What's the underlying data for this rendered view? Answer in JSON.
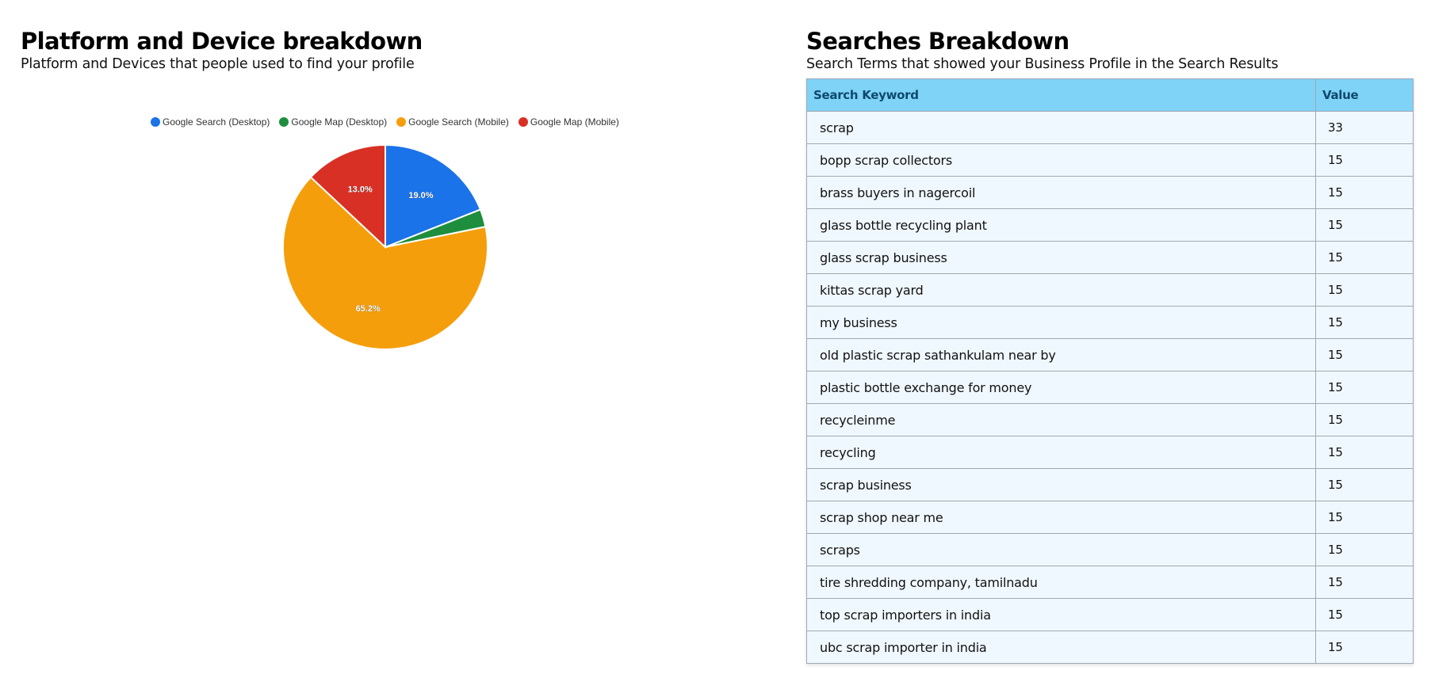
{
  "left_panel": {
    "title": "Platform and Device breakdown",
    "subtitle": "Platform and Devices that people used to find your profile"
  },
  "right_panel": {
    "title": "Searches Breakdown",
    "subtitle": "Search Terms that showed your Business Profile in the Search Results",
    "table": {
      "headers": [
        "Search Keyword",
        "Value"
      ],
      "rows": [
        {
          "keyword": "scrap",
          "value": "33"
        },
        {
          "keyword": "bopp scrap collectors",
          "value": "15"
        },
        {
          "keyword": "brass buyers in nagercoil",
          "value": "15"
        },
        {
          "keyword": "glass bottle recycling plant",
          "value": "15"
        },
        {
          "keyword": "glass scrap business",
          "value": "15"
        },
        {
          "keyword": "kittas scrap yard",
          "value": "15"
        },
        {
          "keyword": "my business",
          "value": "15"
        },
        {
          "keyword": "old plastic scrap sathankulam near by",
          "value": "15"
        },
        {
          "keyword": "plastic bottle exchange for money",
          "value": "15"
        },
        {
          "keyword": "recycleinme",
          "value": "15"
        },
        {
          "keyword": "recycling",
          "value": "15"
        },
        {
          "keyword": "scrap business",
          "value": "15"
        },
        {
          "keyword": "scrap shop near me",
          "value": "15"
        },
        {
          "keyword": "scraps",
          "value": "15"
        },
        {
          "keyword": "tire shredding company, tamilnadu",
          "value": "15"
        },
        {
          "keyword": "top scrap importers in india",
          "value": "15"
        },
        {
          "keyword": "ubc scrap importer in india",
          "value": "15"
        }
      ]
    }
  },
  "chart_data": [
    {
      "type": "pie",
      "title": "Platform and Device breakdown",
      "subtitle": "Platform and Devices that people used to find your profile",
      "categories": [
        "Google Search (Desktop)",
        "Google Map (Desktop)",
        "Google Search (Mobile)",
        "Google Map (Mobile)"
      ],
      "values": [
        19.0,
        2.8,
        65.2,
        13.0
      ],
      "labels": [
        "19.0%",
        "",
        "65.2%",
        "13.0%"
      ],
      "colors": [
        "#1a73e8",
        "#1e8e3e",
        "#f59e0b",
        "#d93025"
      ],
      "legend_position": "top"
    },
    {
      "type": "table",
      "title": "Searches Breakdown",
      "columns": [
        "Search Keyword",
        "Value"
      ],
      "rows": [
        [
          "scrap",
          33
        ],
        [
          "bopp scrap collectors",
          15
        ],
        [
          "brass buyers in nagercoil",
          15
        ],
        [
          "glass bottle recycling plant",
          15
        ],
        [
          "glass scrap business",
          15
        ],
        [
          "kittas scrap yard",
          15
        ],
        [
          "my business",
          15
        ],
        [
          "old plastic scrap sathankulam near by",
          15
        ],
        [
          "plastic bottle exchange for money",
          15
        ],
        [
          "recycleinme",
          15
        ],
        [
          "recycling",
          15
        ],
        [
          "scrap business",
          15
        ],
        [
          "scrap shop near me",
          15
        ],
        [
          "scraps",
          15
        ],
        [
          "tire shredding company, tamilnadu",
          15
        ],
        [
          "top scrap importers in india",
          15
        ],
        [
          "ubc scrap importer in india",
          15
        ]
      ]
    }
  ],
  "colors": {
    "header_bg": "#7fd3f7",
    "header_text": "#0d4a6e",
    "row_bg": "#f0f8ff",
    "border": "#a0a8b4"
  }
}
